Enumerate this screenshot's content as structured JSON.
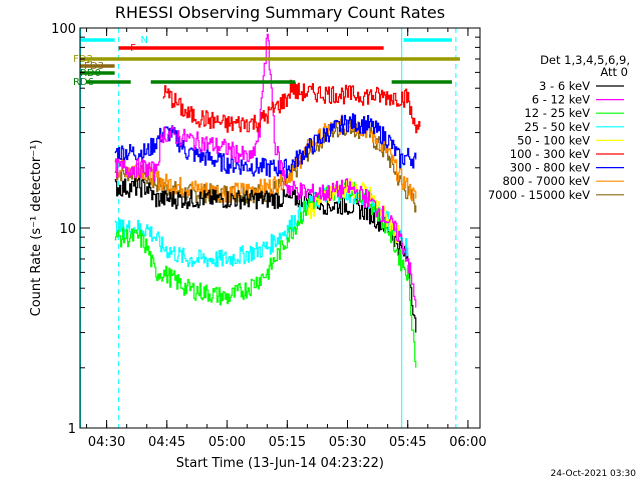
{
  "chart_data": {
    "type": "line",
    "title": "RHESSI Observing Summary Count Rates",
    "xlabel": "Start Time (13-Jun-14 04:23:22)",
    "ylabel": "Count Rate (s⁻¹ detector⁻¹)",
    "x_scale": "time",
    "y_scale": "log",
    "xlim": [
      "04:23:22",
      "06:03:00"
    ],
    "ylim": [
      1,
      100
    ],
    "x_ticks": [
      "04:30",
      "04:45",
      "05:00",
      "05:15",
      "05:30",
      "05:45",
      "06:00"
    ],
    "y_ticks": [
      "1",
      "10",
      "100"
    ],
    "legend_header": [
      "Det 1,3,4,5,6,9,",
      "Att 0"
    ],
    "legend_position": "right",
    "series": [
      {
        "name": "3 - 6 keV",
        "color": "#000000",
        "x": [
          "04:23",
          "04:32",
          "04:38",
          "04:40",
          "04:42",
          "04:44",
          "04:50",
          "05:00",
          "05:10",
          "05:15",
          "05:20",
          "05:25",
          "05:30",
          "05:35",
          "05:40",
          "05:43",
          "05:45",
          "05:47"
        ],
        "y": [
          null,
          16,
          16,
          16,
          14,
          14,
          14,
          14,
          14,
          14,
          14,
          13,
          13,
          12,
          10,
          8,
          7,
          3
        ]
      },
      {
        "name": "6 - 12 keV",
        "color": "#ff00ff",
        "x": [
          "04:32",
          "04:38",
          "04:40",
          "04:42",
          "04:44",
          "04:50",
          "05:00",
          "05:06",
          "05:08",
          "05:09",
          "05:10",
          "05:11",
          "05:12",
          "05:15",
          "05:20",
          "05:25",
          "05:30",
          "05:35",
          "05:40",
          "05:43",
          "05:45",
          "05:47"
        ],
        "y": [
          20,
          20,
          20,
          19,
          30,
          28,
          25,
          22,
          30,
          60,
          90,
          50,
          25,
          16,
          15,
          15,
          16,
          14,
          11,
          9,
          7,
          4
        ]
      },
      {
        "name": "12 - 25 keV",
        "color": "#00ff00",
        "x": [
          "04:32",
          "04:38",
          "04:40",
          "04:42",
          "04:44",
          "04:50",
          "05:00",
          "05:05",
          "05:10",
          "05:15",
          "05:20",
          "05:25",
          "05:30",
          "05:35",
          "05:40",
          "05:43",
          "05:45",
          "05:47"
        ],
        "y": [
          9,
          9,
          8,
          6,
          6,
          5,
          4.5,
          5,
          6,
          9,
          13,
          15,
          16,
          14,
          10,
          7,
          6,
          2
        ]
      },
      {
        "name": "25 - 50 keV",
        "color": "#00ffff",
        "x": [
          "04:32",
          "04:38",
          "04:40",
          "04:42",
          "04:44",
          "04:50",
          "05:00",
          "05:10",
          "05:15",
          "05:20",
          "05:25",
          "05:30",
          "05:35",
          "05:40",
          "05:43",
          "05:45"
        ],
        "y": [
          10,
          10,
          10,
          9,
          8,
          7,
          7,
          8,
          10,
          13,
          15,
          15,
          14,
          11,
          9,
          8
        ]
      },
      {
        "name": "50 - 100 keV",
        "color": "#ffff00",
        "x": [
          "05:20",
          "05:25",
          "05:30",
          "05:35",
          "05:40",
          "05:43"
        ],
        "y": [
          12,
          15,
          16,
          15,
          11,
          9
        ]
      },
      {
        "name": "100 - 300 keV",
        "color": "#ff0000",
        "x": [
          "04:44",
          "04:46",
          "04:50",
          "05:00",
          "05:08",
          "05:12",
          "05:15",
          "05:16",
          "05:17",
          "05:45",
          "05:46",
          "05:48"
        ],
        "y": [
          48,
          45,
          37,
          33,
          34,
          40,
          45,
          52,
          48,
          45,
          35,
          32
        ]
      },
      {
        "name": "300 - 800 keV",
        "color": "#0000ff",
        "x": [
          "04:32",
          "04:38",
          "04:40",
          "04:44",
          "04:46",
          "04:50",
          "05:00",
          "05:10",
          "05:15",
          "05:20",
          "05:25",
          "05:30",
          "05:35",
          "05:40",
          "05:43",
          "05:45",
          "05:47"
        ],
        "y": [
          24,
          24,
          24,
          30,
          30,
          24,
          21,
          20,
          20,
          25,
          30,
          34,
          33,
          28,
          22,
          23,
          22
        ]
      },
      {
        "name": "800 - 7000 keV",
        "color": "#ff8c00",
        "x": [
          "04:32",
          "04:38",
          "04:40",
          "04:44",
          "04:50",
          "05:00",
          "05:10",
          "05:15",
          "05:20",
          "05:25",
          "05:30",
          "05:35",
          "05:40",
          "05:43",
          "05:45",
          "05:47"
        ],
        "y": [
          20,
          20,
          19,
          17,
          16,
          15,
          16,
          18,
          25,
          31,
          34,
          31,
          24,
          18,
          16,
          14
        ]
      },
      {
        "name": "7000 - 15000 keV",
        "color": "#8b6914",
        "x": [
          "04:32",
          "04:38",
          "04:40",
          "04:44",
          "04:50",
          "05:00",
          "05:10",
          "05:15",
          "05:20",
          "05:25",
          "05:30",
          "05:35",
          "05:40",
          "05:43",
          "05:45",
          "05:47"
        ],
        "y": [
          19,
          19,
          18,
          16,
          15,
          15,
          15,
          17,
          24,
          30,
          33,
          30,
          23,
          17,
          15,
          13
        ]
      }
    ],
    "flags": [
      {
        "label": "N",
        "color": "#00ffff",
        "segments": [
          [
            "04:23",
            "04:32"
          ],
          [
            "05:44",
            "05:56"
          ]
        ]
      },
      {
        "label": "F",
        "color": "#ff0000",
        "segments": [
          [
            "04:33",
            "05:39"
          ]
        ]
      },
      {
        "label": "FD2",
        "color": "#999900",
        "segments": [
          [
            "04:23",
            "05:58"
          ]
        ]
      },
      {
        "label": "FD3",
        "color": "#8b6914",
        "segments": [
          [
            "04:23",
            "04:32"
          ]
        ]
      },
      {
        "label": "RD0",
        "color": "#008000",
        "segments": [
          [
            "04:23",
            "04:32"
          ]
        ]
      },
      {
        "label": "RD6",
        "color": "#008000",
        "segments": [
          [
            "04:25",
            "04:36"
          ],
          [
            "04:41",
            "05:17"
          ],
          [
            "05:41",
            "05:56"
          ]
        ]
      }
    ],
    "vertical_markers": [
      {
        "time": "04:23:30",
        "color": "#00ffff",
        "style": "solid"
      },
      {
        "time": "04:33:00",
        "color": "#00ffff",
        "style": "dashed"
      },
      {
        "time": "05:43:30",
        "color": "#00ffff",
        "style": "solid"
      },
      {
        "time": "05:57:00",
        "color": "#00ffff",
        "style": "dashed"
      }
    ],
    "grid": false
  },
  "footer_timestamp": "24-Oct-2021 03:30"
}
